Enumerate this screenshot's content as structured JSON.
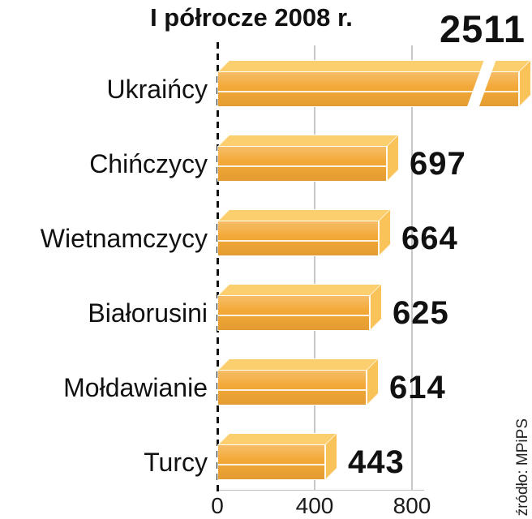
{
  "chart_data": {
    "type": "bar",
    "orientation": "horizontal",
    "title": "I półrocze 2008 r.",
    "categories": [
      "Ukraińcy",
      "Chińczycy",
      "Wietnamczycy",
      "Białorusini",
      "Mołdawianie",
      "Turcy"
    ],
    "values": [
      2511,
      697,
      664,
      625,
      614,
      443
    ],
    "x_ticks": [
      "0",
      "400",
      "800"
    ],
    "xlim": [
      0,
      800
    ],
    "grid": "vertical gridlines at ticks, dashed zero baseline",
    "legend": null,
    "source": "źródło: MPiPS",
    "notes": "Bar for Ukraińcy exceeds the axis range and is drawn clipped with a diagonal break mark; its value label sits at the top right.",
    "colors": {
      "bar_front": "#F3A836",
      "bar_top": "#FBCF6D",
      "bar_side": "#F9C35A",
      "grid": "#C8C8C8",
      "baseline": "#111111",
      "text": "#111111"
    }
  }
}
